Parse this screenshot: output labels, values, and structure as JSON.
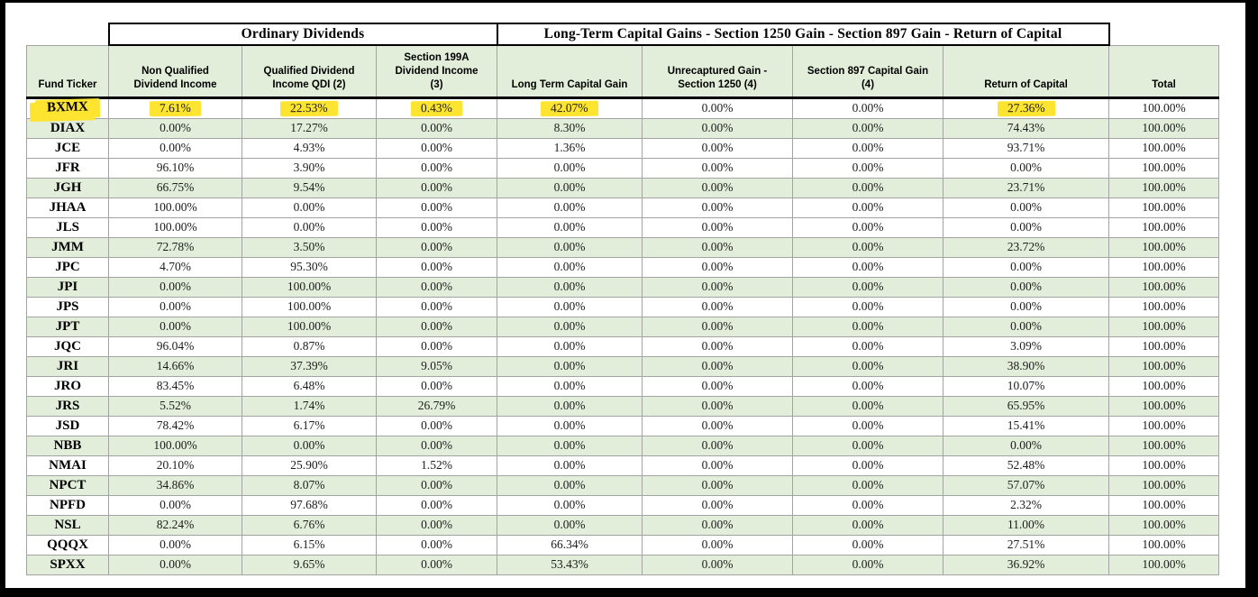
{
  "table": {
    "group_headers": [
      {
        "label": "Ordinary Dividends",
        "span": 3
      },
      {
        "label": "Long-Term Capital Gains - Section 1250 Gain - Section 897 Gain -  Return of Capital",
        "span": 4
      }
    ],
    "columns": [
      "Fund Ticker",
      "Non Qualified\nDividend Income",
      "Qualified Dividend\nIncome QDI (2)",
      "Section 199A\nDividend Income\n(3)",
      "Long Term Capital Gain",
      "Unrecaptured Gain -\nSection 1250 (4)",
      "Section 897 Capital Gain\n(4)",
      "Return of Capital",
      "Total"
    ],
    "colors": {
      "header_green": "#e2eed9",
      "row_green": "#e2eed9",
      "highlight_yellow": "#fde430",
      "grid_gray": "#a3a3a3",
      "border_black": "#000000"
    },
    "rows": [
      {
        "ticker": "BXMX",
        "green": false,
        "ticker_highlight": true,
        "highlight_cols": [
          0,
          1,
          2,
          3,
          6
        ],
        "values": [
          "7.61%",
          "22.53%",
          "0.43%",
          "42.07%",
          "0.00%",
          "0.00%",
          "27.36%",
          "100.00%"
        ]
      },
      {
        "ticker": "DIAX",
        "green": true,
        "values": [
          "0.00%",
          "17.27%",
          "0.00%",
          "8.30%",
          "0.00%",
          "0.00%",
          "74.43%",
          "100.00%"
        ]
      },
      {
        "ticker": "JCE",
        "green": false,
        "values": [
          "0.00%",
          "4.93%",
          "0.00%",
          "1.36%",
          "0.00%",
          "0.00%",
          "93.71%",
          "100.00%"
        ]
      },
      {
        "ticker": "JFR",
        "green": false,
        "values": [
          "96.10%",
          "3.90%",
          "0.00%",
          "0.00%",
          "0.00%",
          "0.00%",
          "0.00%",
          "100.00%"
        ]
      },
      {
        "ticker": "JGH",
        "green": true,
        "values": [
          "66.75%",
          "9.54%",
          "0.00%",
          "0.00%",
          "0.00%",
          "0.00%",
          "23.71%",
          "100.00%"
        ]
      },
      {
        "ticker": "JHAA",
        "green": false,
        "values": [
          "100.00%",
          "0.00%",
          "0.00%",
          "0.00%",
          "0.00%",
          "0.00%",
          "0.00%",
          "100.00%"
        ]
      },
      {
        "ticker": "JLS",
        "green": false,
        "values": [
          "100.00%",
          "0.00%",
          "0.00%",
          "0.00%",
          "0.00%",
          "0.00%",
          "0.00%",
          "100.00%"
        ]
      },
      {
        "ticker": "JMM",
        "green": true,
        "values": [
          "72.78%",
          "3.50%",
          "0.00%",
          "0.00%",
          "0.00%",
          "0.00%",
          "23.72%",
          "100.00%"
        ]
      },
      {
        "ticker": "JPC",
        "green": false,
        "values": [
          "4.70%",
          "95.30%",
          "0.00%",
          "0.00%",
          "0.00%",
          "0.00%",
          "0.00%",
          "100.00%"
        ]
      },
      {
        "ticker": "JPI",
        "green": true,
        "values": [
          "0.00%",
          "100.00%",
          "0.00%",
          "0.00%",
          "0.00%",
          "0.00%",
          "0.00%",
          "100.00%"
        ]
      },
      {
        "ticker": "JPS",
        "green": false,
        "values": [
          "0.00%",
          "100.00%",
          "0.00%",
          "0.00%",
          "0.00%",
          "0.00%",
          "0.00%",
          "100.00%"
        ]
      },
      {
        "ticker": "JPT",
        "green": true,
        "values": [
          "0.00%",
          "100.00%",
          "0.00%",
          "0.00%",
          "0.00%",
          "0.00%",
          "0.00%",
          "100.00%"
        ]
      },
      {
        "ticker": "JQC",
        "green": false,
        "values": [
          "96.04%",
          "0.87%",
          "0.00%",
          "0.00%",
          "0.00%",
          "0.00%",
          "3.09%",
          "100.00%"
        ]
      },
      {
        "ticker": "JRI",
        "green": true,
        "values": [
          "14.66%",
          "37.39%",
          "9.05%",
          "0.00%",
          "0.00%",
          "0.00%",
          "38.90%",
          "100.00%"
        ]
      },
      {
        "ticker": "JRO",
        "green": false,
        "values": [
          "83.45%",
          "6.48%",
          "0.00%",
          "0.00%",
          "0.00%",
          "0.00%",
          "10.07%",
          "100.00%"
        ]
      },
      {
        "ticker": "JRS",
        "green": true,
        "values": [
          "5.52%",
          "1.74%",
          "26.79%",
          "0.00%",
          "0.00%",
          "0.00%",
          "65.95%",
          "100.00%"
        ]
      },
      {
        "ticker": "JSD",
        "green": false,
        "values": [
          "78.42%",
          "6.17%",
          "0.00%",
          "0.00%",
          "0.00%",
          "0.00%",
          "15.41%",
          "100.00%"
        ]
      },
      {
        "ticker": "NBB",
        "green": true,
        "values": [
          "100.00%",
          "0.00%",
          "0.00%",
          "0.00%",
          "0.00%",
          "0.00%",
          "0.00%",
          "100.00%"
        ]
      },
      {
        "ticker": "NMAI",
        "green": false,
        "values": [
          "20.10%",
          "25.90%",
          "1.52%",
          "0.00%",
          "0.00%",
          "0.00%",
          "52.48%",
          "100.00%"
        ]
      },
      {
        "ticker": "NPCT",
        "green": true,
        "values": [
          "34.86%",
          "8.07%",
          "0.00%",
          "0.00%",
          "0.00%",
          "0.00%",
          "57.07%",
          "100.00%"
        ]
      },
      {
        "ticker": "NPFD",
        "green": false,
        "values": [
          "0.00%",
          "97.68%",
          "0.00%",
          "0.00%",
          "0.00%",
          "0.00%",
          "2.32%",
          "100.00%"
        ]
      },
      {
        "ticker": "NSL",
        "green": true,
        "values": [
          "82.24%",
          "6.76%",
          "0.00%",
          "0.00%",
          "0.00%",
          "0.00%",
          "11.00%",
          "100.00%"
        ]
      },
      {
        "ticker": "QQQX",
        "green": false,
        "values": [
          "0.00%",
          "6.15%",
          "0.00%",
          "66.34%",
          "0.00%",
          "0.00%",
          "27.51%",
          "100.00%"
        ]
      },
      {
        "ticker": "SPXX",
        "green": true,
        "values": [
          "0.00%",
          "9.65%",
          "0.00%",
          "53.43%",
          "0.00%",
          "0.00%",
          "36.92%",
          "100.00%"
        ]
      }
    ]
  }
}
